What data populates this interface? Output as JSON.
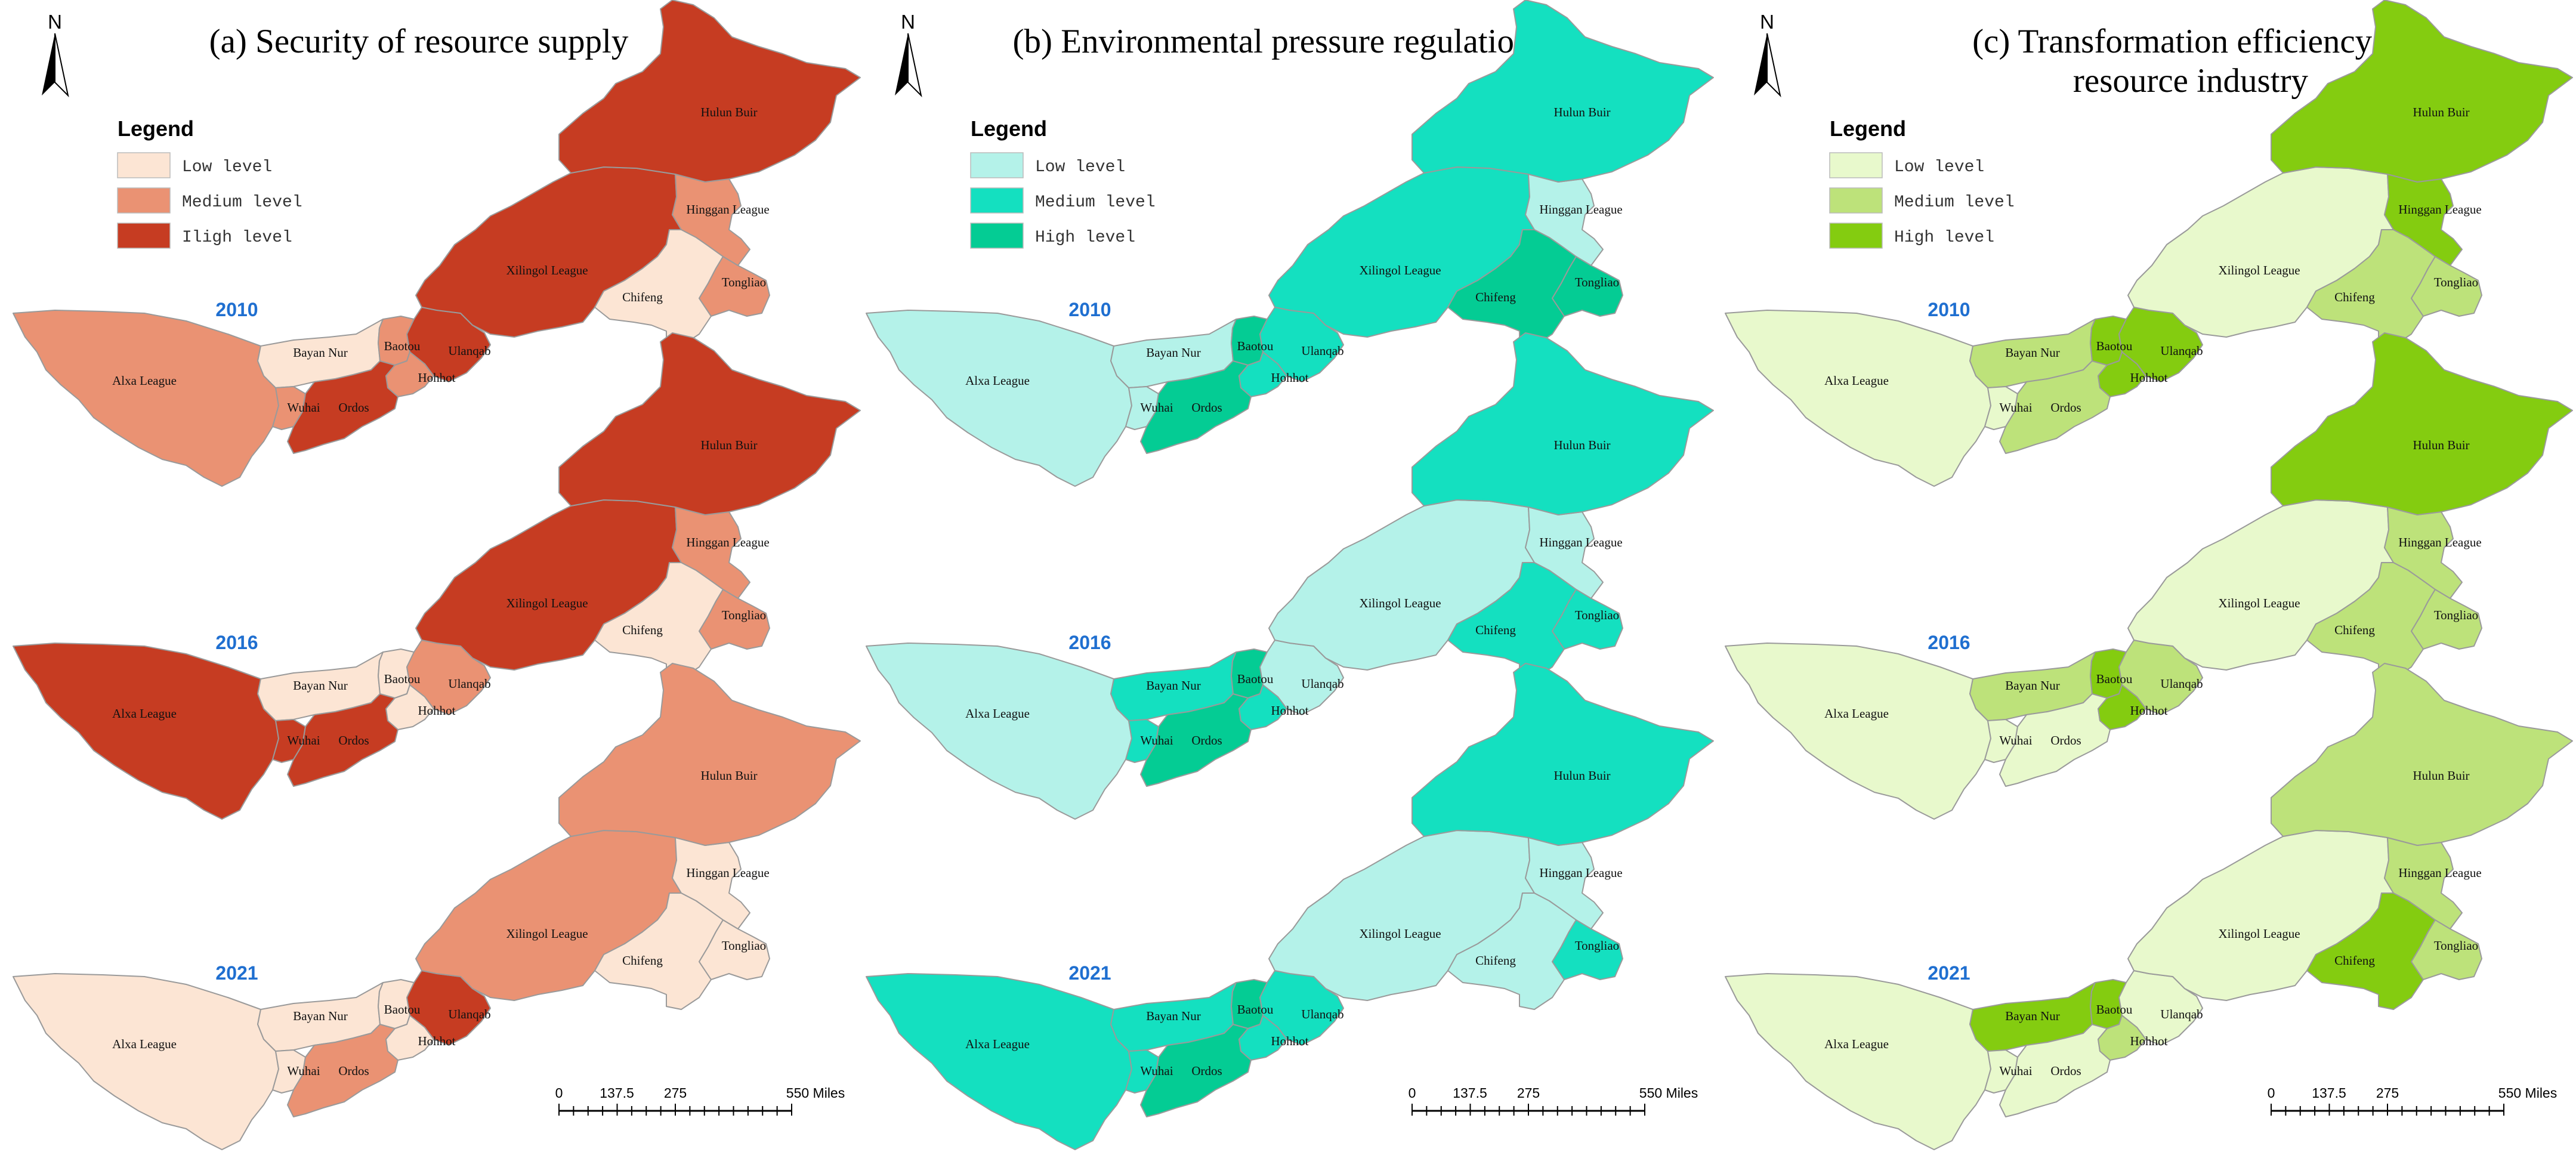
{
  "panels": [
    {
      "title_lines": [
        "(a) Security of resource supply"
      ],
      "legend": {
        "heading": "Legend",
        "items": [
          {
            "label": "Low level",
            "color": "#fce5d4"
          },
          {
            "label": "Medium level",
            "color": "#ea9273"
          },
          {
            "label": "Iligh level",
            "color": "#c63c22"
          }
        ]
      },
      "maps": [
        {
          "year": "2010",
          "levels": {
            "hulun": 2,
            "hinggan": 1,
            "xilingol": 2,
            "chifeng": 0,
            "tongliao": 1,
            "alxa": 1,
            "bayan": 0,
            "baotou": 1,
            "ulanqab": 2,
            "hohhot": 1,
            "wuhai": 1,
            "ordos": 2
          }
        },
        {
          "year": "2016",
          "levels": {
            "hulun": 2,
            "hinggan": 1,
            "xilingol": 2,
            "chifeng": 0,
            "tongliao": 1,
            "alxa": 2,
            "bayan": 0,
            "baotou": 0,
            "ulanqab": 1,
            "hohhot": 0,
            "wuhai": 2,
            "ordos": 2
          }
        },
        {
          "year": "2021",
          "levels": {
            "hulun": 1,
            "hinggan": 0,
            "xilingol": 1,
            "chifeng": 0,
            "tongliao": 0,
            "alxa": 0,
            "bayan": 0,
            "baotou": 0,
            "ulanqab": 2,
            "hohhot": 0,
            "wuhai": 0,
            "ordos": 1
          }
        }
      ],
      "scale": {
        "ticks": [
          "0",
          "137.5",
          "275",
          "550 Miles"
        ]
      }
    },
    {
      "title_lines": [
        "(b) Environmental pressure regulation"
      ],
      "legend": {
        "heading": "Legend",
        "items": [
          {
            "label": "Low level",
            "color": "#b4f2e9"
          },
          {
            "label": "Medium level",
            "color": "#14e0c0"
          },
          {
            "label": "High level",
            "color": "#04cc94"
          }
        ]
      },
      "maps": [
        {
          "year": "2010",
          "levels": {
            "hulun": 1,
            "hinggan": 0,
            "xilingol": 1,
            "chifeng": 2,
            "tongliao": 2,
            "alxa": 0,
            "bayan": 0,
            "baotou": 2,
            "ulanqab": 1,
            "hohhot": 1,
            "wuhai": 0,
            "ordos": 2
          }
        },
        {
          "year": "2016",
          "levels": {
            "hulun": 1,
            "hinggan": 0,
            "xilingol": 0,
            "chifeng": 1,
            "tongliao": 1,
            "alxa": 0,
            "bayan": 1,
            "baotou": 2,
            "ulanqab": 0,
            "hohhot": 1,
            "wuhai": 1,
            "ordos": 2
          }
        },
        {
          "year": "2021",
          "levels": {
            "hulun": 1,
            "hinggan": 0,
            "xilingol": 0,
            "chifeng": 0,
            "tongliao": 1,
            "alxa": 1,
            "bayan": 1,
            "baotou": 2,
            "ulanqab": 1,
            "hohhot": 1,
            "wuhai": 1,
            "ordos": 2
          }
        }
      ],
      "scale": {
        "ticks": [
          "0",
          "137.5",
          "275",
          "550 Miles"
        ]
      }
    },
    {
      "title_lines": [
        "(c) Transformation efficiency of",
        "resource industry"
      ],
      "legend": {
        "heading": "Legend",
        "items": [
          {
            "label": "Low level",
            "color": "#e8f9cc"
          },
          {
            "label": "Medium level",
            "color": "#bde27a"
          },
          {
            "label": "High level",
            "color": "#84cc10"
          }
        ]
      },
      "maps": [
        {
          "year": "2010",
          "levels": {
            "hulun": 2,
            "hinggan": 2,
            "xilingol": 0,
            "chifeng": 1,
            "tongliao": 1,
            "alxa": 0,
            "bayan": 1,
            "baotou": 2,
            "ulanqab": 2,
            "hohhot": 2,
            "wuhai": 0,
            "ordos": 1
          }
        },
        {
          "year": "2016",
          "levels": {
            "hulun": 2,
            "hinggan": 1,
            "xilingol": 0,
            "chifeng": 1,
            "tongliao": 1,
            "alxa": 0,
            "bayan": 1,
            "baotou": 2,
            "ulanqab": 1,
            "hohhot": 2,
            "wuhai": 0,
            "ordos": 0
          }
        },
        {
          "year": "2021",
          "levels": {
            "hulun": 1,
            "hinggan": 1,
            "xilingol": 0,
            "chifeng": 2,
            "tongliao": 1,
            "alxa": 0,
            "bayan": 2,
            "baotou": 2,
            "ulanqab": 0,
            "hohhot": 1,
            "wuhai": 0,
            "ordos": 0
          }
        }
      ],
      "scale": {
        "ticks": [
          "0",
          "137.5",
          "275",
          "550 Miles"
        ]
      }
    }
  ],
  "region_names": {
    "hulun": "Hulun Buir",
    "hinggan": "Hinggan League",
    "xilingol": "Xilingol League",
    "chifeng": "Chifeng",
    "tongliao": "Tongliao",
    "alxa": "Alxa League",
    "bayan": "Bayan Nur",
    "baotou": "Baotou",
    "ulanqab": "Ulanqab",
    "hohhot": "Hohhot",
    "wuhai": "Wuhai",
    "ordos": "Ordos"
  },
  "north_label": "N"
}
